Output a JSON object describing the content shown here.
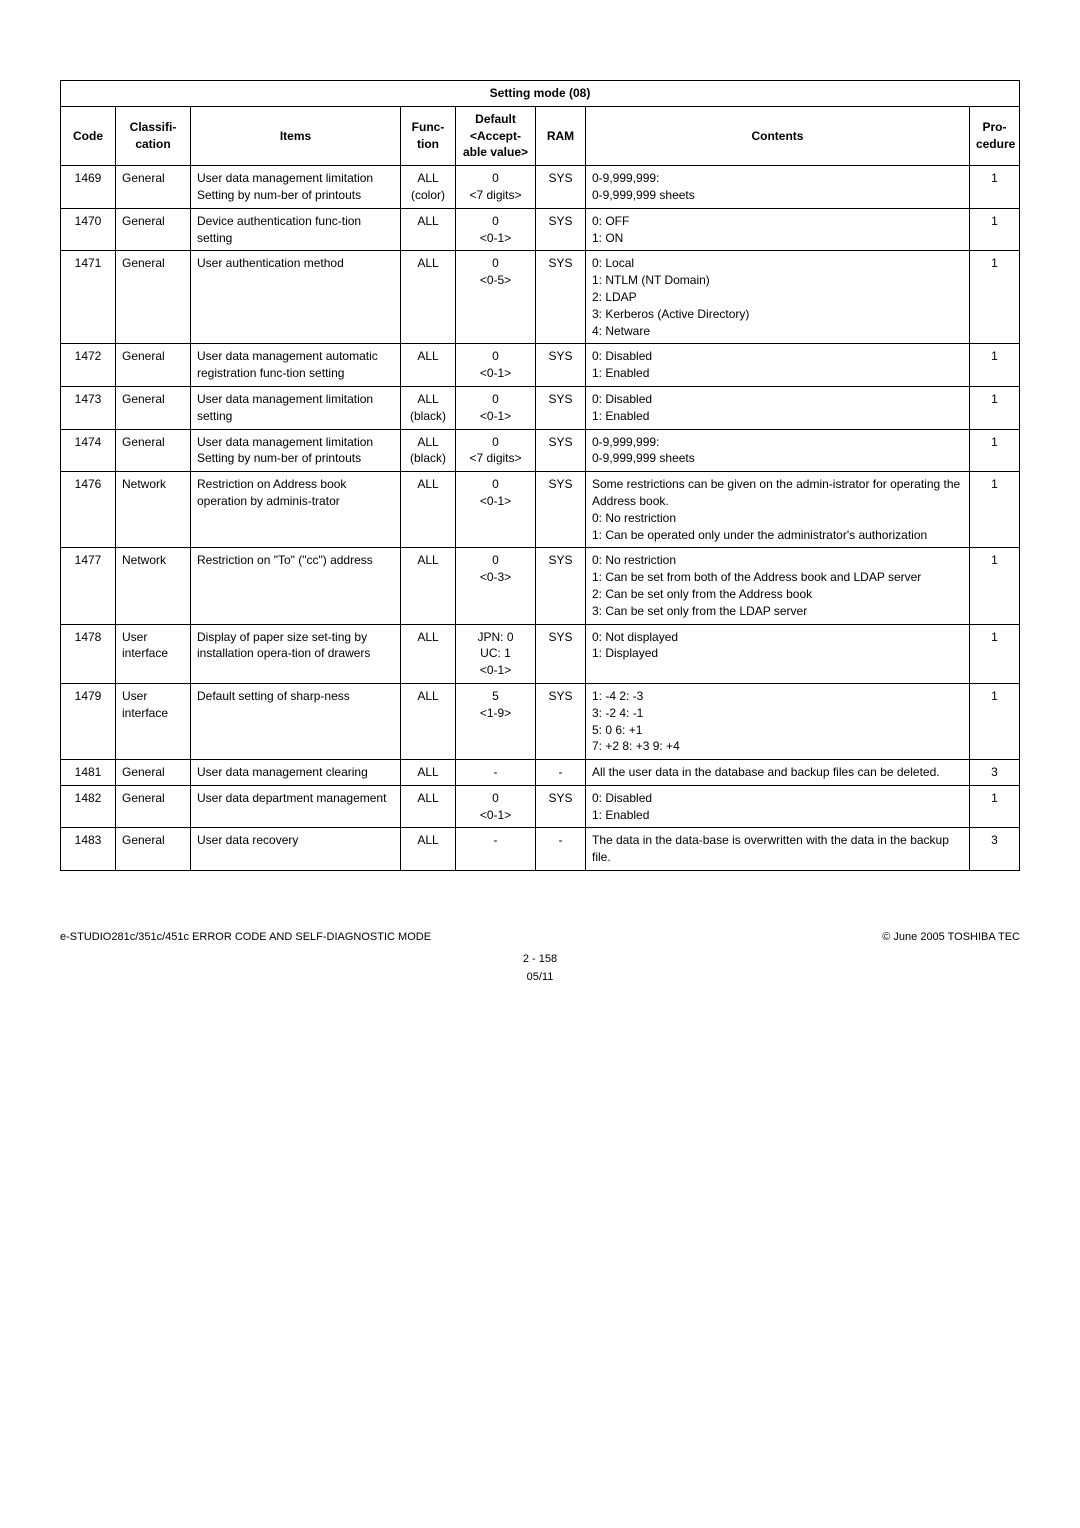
{
  "table": {
    "title": "Setting mode (08)",
    "headers": {
      "code": "Code",
      "classif": "Classifi-cation",
      "items": "Items",
      "func": "Func-tion",
      "default": "Default <Accept-able value>",
      "ram": "RAM",
      "contents": "Contents",
      "proc": "Pro-cedure"
    },
    "rows": [
      {
        "code": "1469",
        "classif": "General",
        "items": "User data management limitation Setting by num-ber of printouts",
        "func": "ALL (color)",
        "default": "0\n<7 digits>",
        "ram": "SYS",
        "contents": "0-9,999,999:\n0-9,999,999 sheets",
        "proc": "1"
      },
      {
        "code": "1470",
        "classif": "General",
        "items": "Device authentication func-tion setting",
        "func": "ALL",
        "default": "0\n<0-1>",
        "ram": "SYS",
        "contents": "0: OFF\n1: ON",
        "proc": "1"
      },
      {
        "code": "1471",
        "classif": "General",
        "items": "User authentication method",
        "func": "ALL",
        "default": "0\n<0-5>",
        "ram": "SYS",
        "contents": "0: Local\n1: NTLM (NT Domain)\n2: LDAP\n3: Kerberos (Active Directory)\n4: Netware",
        "proc": "1"
      },
      {
        "code": "1472",
        "classif": "General",
        "items": "User data management automatic registration func-tion setting",
        "func": "ALL",
        "default": "0\n<0-1>",
        "ram": "SYS",
        "contents": "0: Disabled\n1: Enabled",
        "proc": "1"
      },
      {
        "code": "1473",
        "classif": "General",
        "items": "User data management limitation setting",
        "func": "ALL (black)",
        "default": "0\n<0-1>",
        "ram": "SYS",
        "contents": "0: Disabled\n1: Enabled",
        "proc": "1"
      },
      {
        "code": "1474",
        "classif": "General",
        "items": "User data management limitation Setting by num-ber of printouts",
        "func": "ALL (black)",
        "default": "0\n<7 digits>",
        "ram": "SYS",
        "contents": "0-9,999,999:\n0-9,999,999 sheets",
        "proc": "1"
      },
      {
        "code": "1476",
        "classif": "Network",
        "items": "Restriction on Address book operation by adminis-trator",
        "func": "ALL",
        "default": "0\n<0-1>",
        "ram": "SYS",
        "contents": "Some restrictions can be given on the admin-istrator for operating the Address book.\n0: No restriction\n1: Can be operated only under the administrator's authorization",
        "proc": "1"
      },
      {
        "code": "1477",
        "classif": "Network",
        "items": "Restriction on \"To\" (\"cc\") address",
        "func": "ALL",
        "default": "0\n<0-3>",
        "ram": "SYS",
        "contents": "0: No restriction\n1: Can be set from both of the Address book and LDAP server\n2: Can be set only from the Address book\n3: Can be set only from the LDAP server",
        "proc": "1"
      },
      {
        "code": "1478",
        "classif": "User interface",
        "items": "Display of paper size set-ting by installation opera-tion of drawers",
        "func": "ALL",
        "default": "JPN: 0\nUC: 1\n<0-1>",
        "ram": "SYS",
        "contents": "0: Not displayed\n1: Displayed",
        "proc": "1"
      },
      {
        "code": "1479",
        "classif": "User interface",
        "items": "Default setting of sharp-ness",
        "func": "ALL",
        "default": "5\n<1-9>",
        "ram": "SYS",
        "contents": "1: -4   2: -3\n3: -2   4: -1\n5: 0    6: +1\n7: +2   8: +3   9: +4",
        "proc": "1"
      },
      {
        "code": "1481",
        "classif": "General",
        "items": "User data management clearing",
        "func": "ALL",
        "default": "-",
        "ram": "-",
        "contents": "All the user data in the database and backup files can be deleted.",
        "proc": "3"
      },
      {
        "code": "1482",
        "classif": "General",
        "items": "User data department management",
        "func": "ALL",
        "default": "0\n<0-1>",
        "ram": "SYS",
        "contents": "0: Disabled\n1: Enabled",
        "proc": "1"
      },
      {
        "code": "1483",
        "classif": "General",
        "items": "User data recovery",
        "func": "ALL",
        "default": "-",
        "ram": "-",
        "contents": "The data in the data-base is overwritten with the data in the backup file.",
        "proc": "3"
      }
    ]
  },
  "footer": {
    "left": "e-STUDIO281c/351c/451c ERROR CODE AND SELF-DIAGNOSTIC MODE",
    "right": "© June 2005 TOSHIBA TEC",
    "page": "2 - 158",
    "date": "05/11"
  }
}
